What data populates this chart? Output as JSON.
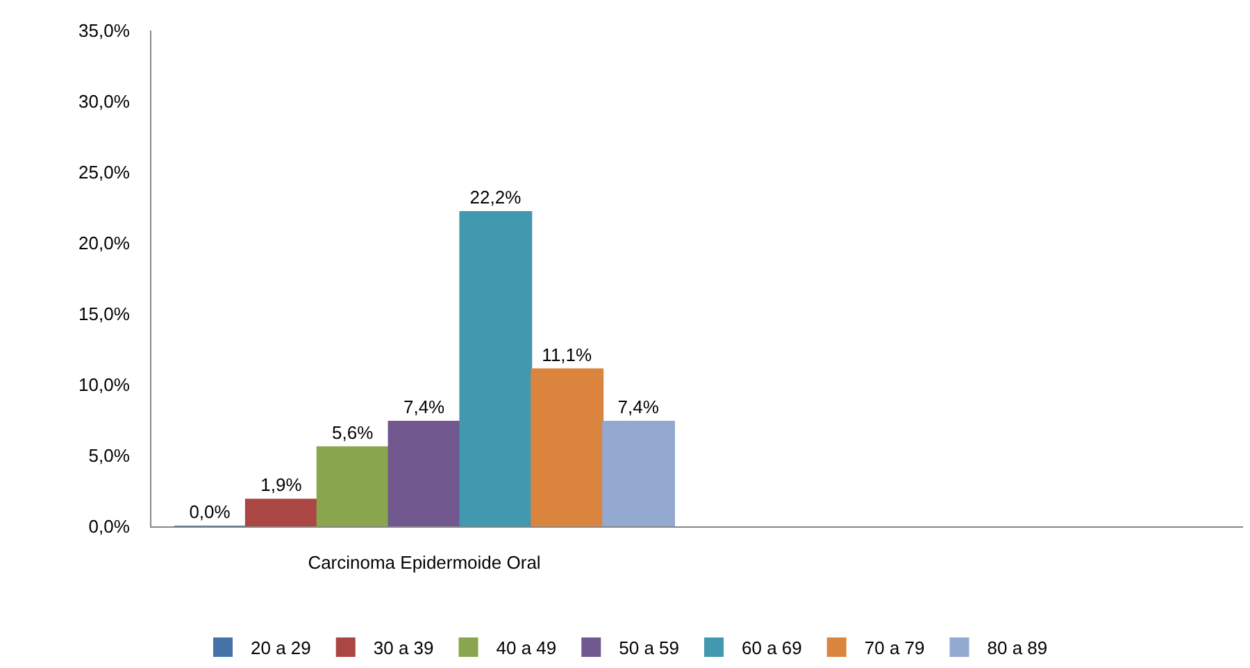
{
  "chart_data": {
    "type": "bar",
    "categories": [
      "Carcinoma Epidermoide Oral",
      null
    ],
    "series": [
      {
        "name": "20 a 29",
        "color": "#4572a7",
        "values": [
          0.0,
          null
        ],
        "value_labels": [
          "0,0%",
          null
        ]
      },
      {
        "name": "30 a 39",
        "color": "#aa4643",
        "values": [
          1.9,
          null
        ],
        "value_labels": [
          "1,9%",
          null
        ]
      },
      {
        "name": "40 a 49",
        "color": "#89a54e",
        "values": [
          5.6,
          null
        ],
        "value_labels": [
          "5,6%",
          null
        ]
      },
      {
        "name": "50 a 59",
        "color": "#71588f",
        "values": [
          7.4,
          null
        ],
        "value_labels": [
          "7,4%",
          null
        ]
      },
      {
        "name": "60 a 69",
        "color": "#4198af",
        "values": [
          22.2,
          null
        ],
        "value_labels": [
          "22,2%",
          null
        ]
      },
      {
        "name": "70 a 79",
        "color": "#db843d",
        "values": [
          11.1,
          null
        ],
        "value_labels": [
          "11,1%",
          null
        ]
      },
      {
        "name": "80 a 89",
        "color": "#93a9cf",
        "values": [
          7.4,
          null
        ],
        "value_labels": [
          "7,4%",
          null
        ]
      }
    ],
    "ylim": [
      0,
      35
    ],
    "yticks": [
      {
        "value": 0,
        "label": "0,0%"
      },
      {
        "value": 5,
        "label": "5,0%"
      },
      {
        "value": 10,
        "label": "10,0%"
      },
      {
        "value": 15,
        "label": "15,0%"
      },
      {
        "value": 20,
        "label": "20,0%"
      },
      {
        "value": 25,
        "label": "25,0%"
      },
      {
        "value": 30,
        "label": "30,0%"
      },
      {
        "value": 35,
        "label": "35,0%"
      }
    ],
    "grid": false,
    "legend": "bottom"
  }
}
